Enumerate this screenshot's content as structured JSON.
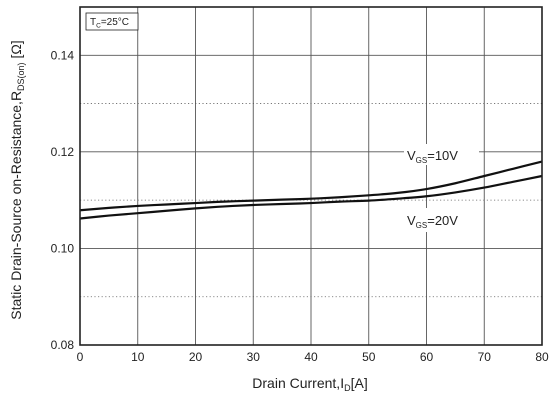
{
  "chart_data": {
    "type": "line",
    "title": "",
    "xlabel": "Drain Current,I_D[A]",
    "xlabel_parts": {
      "pre": "Drain Current,I",
      "sub": "D",
      "post": "[A]"
    },
    "ylabel": "Static Drain-Source on-Resistance,R_DS(on) [Ω]",
    "ylabel_parts": {
      "pre": "Static Drain-Source on-Resistance,R",
      "sub": "DS(on)",
      "post": " [Ω]"
    },
    "xlim": [
      0,
      80
    ],
    "ylim": [
      0.08,
      0.15
    ],
    "x_ticks": [
      "0",
      "10",
      "20",
      "30",
      "40",
      "50",
      "60",
      "70",
      "80"
    ],
    "y_ticks": [
      "0.08",
      "0.10",
      "0.12",
      "0.14"
    ],
    "grid": true,
    "condition": {
      "pre": "T",
      "sub": "C",
      "post": "=25°C"
    },
    "series": [
      {
        "name": "VGS=10V",
        "label_parts": {
          "pre": "V",
          "sub": "GS",
          "post": "=10V"
        },
        "x": [
          0,
          5,
          10,
          15,
          20,
          25,
          30,
          35,
          40,
          45,
          50,
          55,
          60,
          65,
          70,
          75,
          80
        ],
        "y": [
          0.1079,
          0.1084,
          0.1088,
          0.1091,
          0.1094,
          0.1097,
          0.1099,
          0.1101,
          0.1103,
          0.1106,
          0.111,
          0.1115,
          0.1123,
          0.1135,
          0.115,
          0.1165,
          0.118
        ]
      },
      {
        "name": "VGS=20V",
        "label_parts": {
          "pre": "V",
          "sub": "GS",
          "post": "=20V"
        },
        "x": [
          0,
          5,
          10,
          15,
          20,
          25,
          30,
          35,
          40,
          45,
          50,
          55,
          60,
          65,
          70,
          75,
          80
        ],
        "y": [
          0.1062,
          0.1068,
          0.1073,
          0.1078,
          0.1083,
          0.1087,
          0.109,
          0.1092,
          0.1094,
          0.1097,
          0.1099,
          0.1103,
          0.1108,
          0.1116,
          0.1126,
          0.1138,
          0.115
        ]
      }
    ]
  }
}
